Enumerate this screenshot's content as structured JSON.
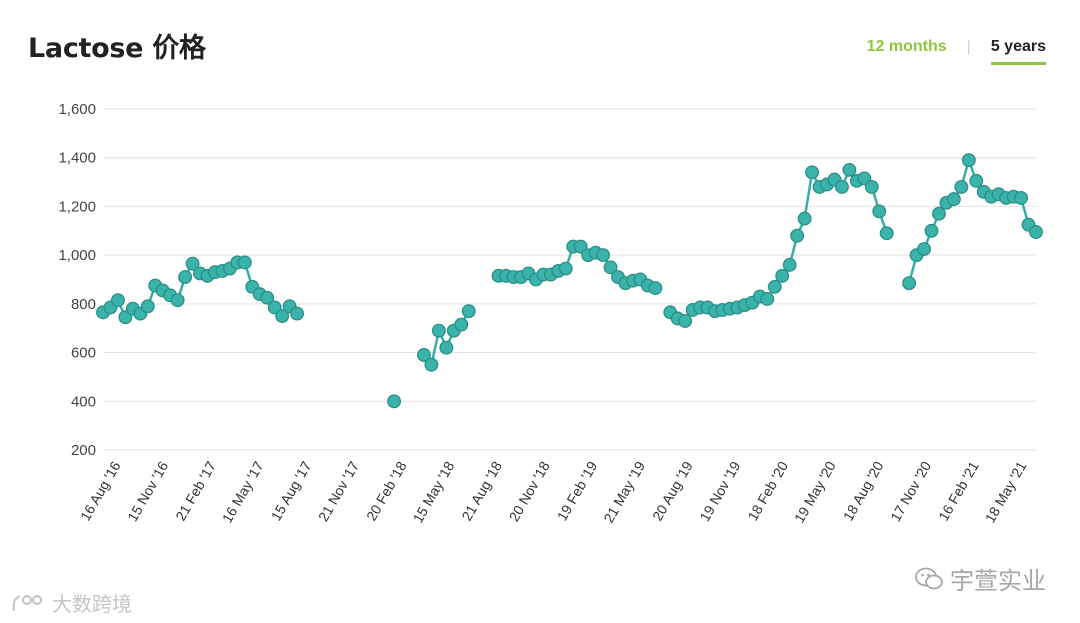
{
  "page": {
    "title": "Lactose 价格",
    "tabs": [
      {
        "label": "12 months",
        "active": false
      },
      {
        "label": "5 years",
        "active": true
      }
    ],
    "watermark_right": "宇萱实业",
    "watermark_left": "大数跨境",
    "colors": {
      "line": "#3aada5",
      "marker": "#3ab4ab",
      "accent": "#8cc63f",
      "grid": "#e3e3e3"
    }
  },
  "chart_data": {
    "type": "line",
    "title": "Lactose 价格",
    "xlabel": "",
    "ylabel": "",
    "ylim": [
      200,
      1600
    ],
    "yticks": [
      200,
      400,
      600,
      800,
      1000,
      1200,
      1400,
      1600
    ],
    "ytick_labels": [
      "200",
      "400",
      "600",
      "800",
      "1,000",
      "1,200",
      "1,400",
      "1,600"
    ],
    "x_tick_labels": [
      "16 Aug '16",
      "15 Nov '16",
      "21 Feb '17",
      "16 May '17",
      "15 Aug '17",
      "21 Nov '17",
      "20 Feb '18",
      "15 May '18",
      "21 Aug '18",
      "20 Nov '18",
      "19 Feb '19",
      "21 May '19",
      "20 Aug '19",
      "19 Nov '19",
      "18 Feb '20",
      "19 May '20",
      "18 Aug '20",
      "17 Nov '20",
      "16 Feb '21",
      "18 May '21"
    ],
    "grid": true,
    "legend": "none",
    "series": [
      {
        "values": [
          765,
          785,
          815,
          745,
          780,
          760,
          790,
          875,
          855,
          835,
          815,
          910,
          965,
          925,
          915,
          930,
          935,
          945,
          970,
          970,
          870,
          840,
          825,
          785,
          750,
          790,
          760,
          null,
          null,
          null,
          null,
          null,
          null,
          null,
          null,
          null,
          null,
          null,
          null,
          400,
          null,
          null,
          null,
          590,
          550,
          690,
          620,
          690,
          715,
          770,
          null,
          null,
          null,
          915,
          915,
          910,
          910,
          925,
          900,
          920,
          920,
          935,
          945,
          1035,
          1035,
          1000,
          1010,
          1000,
          950,
          910,
          885,
          895,
          900,
          875,
          865,
          null,
          765,
          740,
          730,
          775,
          785,
          785,
          770,
          775,
          780,
          785,
          795,
          805,
          830,
          820,
          870,
          915,
          960,
          1080,
          1150,
          1340,
          1280,
          1290,
          1310,
          1280,
          1350,
          1305,
          1315,
          1280,
          1180,
          1090,
          null,
          null,
          885,
          1000,
          1025,
          1100,
          1170,
          1215,
          1230,
          1280,
          1390,
          1305,
          1260,
          1240,
          1250,
          1235,
          1240,
          1235,
          1125,
          1095
        ]
      }
    ]
  }
}
